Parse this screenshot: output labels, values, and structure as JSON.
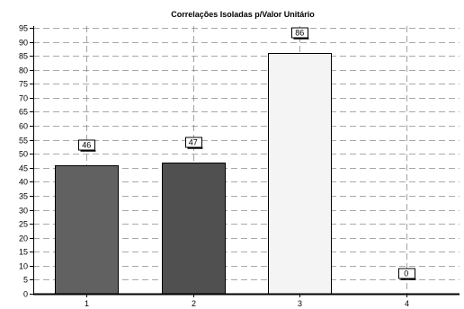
{
  "chart_data": {
    "type": "bar",
    "title": "Correlações Isoladas p/Valor Unitário",
    "xlabel": "",
    "ylabel": "",
    "categories": [
      "1",
      "2",
      "3",
      "4"
    ],
    "values": [
      46,
      47,
      86,
      0
    ],
    "data_labels": [
      "46",
      "47",
      "86",
      "0"
    ],
    "bar_colors": [
      "#616161",
      "#505050",
      "#f4f4f4",
      "#ffffff"
    ],
    "ylim": [
      0,
      95
    ],
    "yticks": [
      "0",
      "5",
      "10",
      "15",
      "20",
      "25",
      "30",
      "35",
      "40",
      "45",
      "50",
      "55",
      "60",
      "65",
      "70",
      "75",
      "80",
      "85",
      "90",
      "95"
    ],
    "grid": true,
    "legend": "none"
  }
}
